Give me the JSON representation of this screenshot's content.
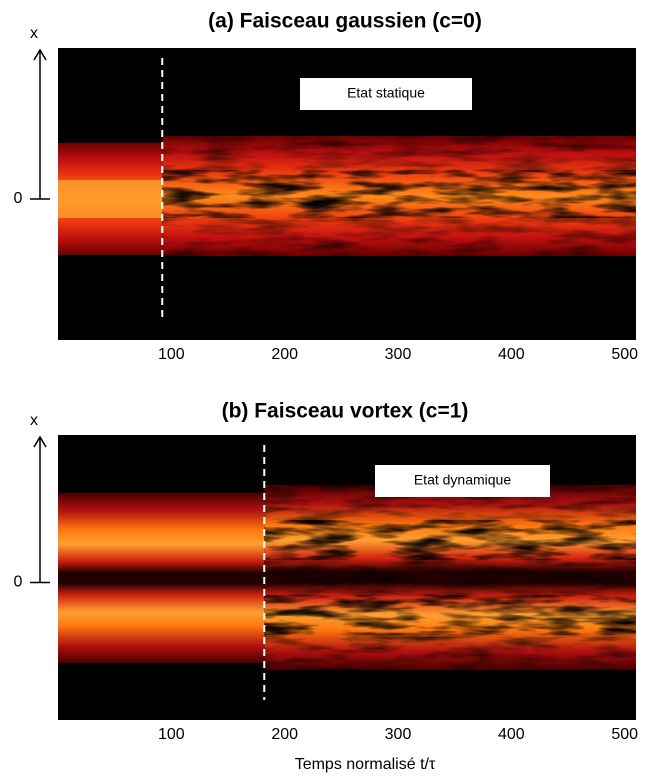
{
  "chart_data": [
    {
      "type": "heatmap",
      "title": "(a) Faisceau gaussien (c=0)",
      "ylabel": "x",
      "yticks": [
        0
      ],
      "xlim": [
        0,
        510
      ],
      "xticks": [
        100,
        200,
        300,
        400,
        500
      ],
      "marker_x": 92,
      "annotation": "Etat statique",
      "pattern": "single"
    },
    {
      "type": "heatmap",
      "title": "(b) Faisceau vortex (c=1)",
      "ylabel": "x",
      "yticks": [
        0
      ],
      "xlim": [
        0,
        510
      ],
      "xticks": [
        100,
        200,
        300,
        400,
        500
      ],
      "marker_x": 182,
      "annotation": "Etat dynamique",
      "pattern": "double",
      "xlabel": "Temps normalisé t/τ"
    }
  ]
}
